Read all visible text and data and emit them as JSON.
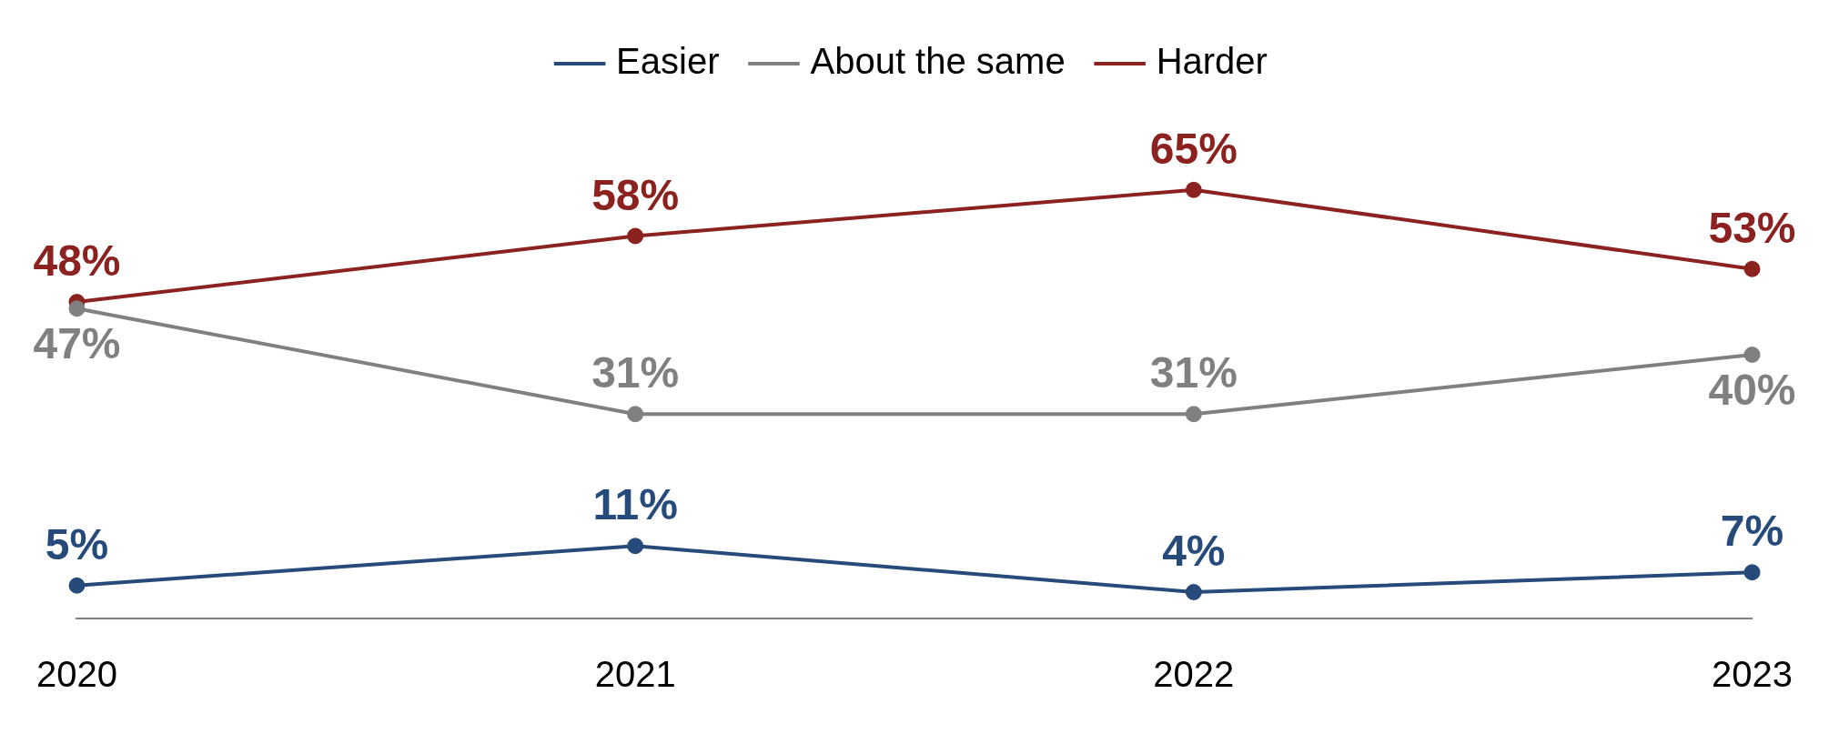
{
  "chart_data": {
    "type": "line",
    "categories": [
      "2020",
      "2021",
      "2022",
      "2023"
    ],
    "series": [
      {
        "name": "Easier",
        "color": "#264b7a",
        "values": [
          5,
          11,
          4,
          7
        ],
        "value_labels": [
          "5%",
          "11%",
          "4%",
          "7%"
        ]
      },
      {
        "name": "About the same",
        "color": "#808080",
        "values": [
          47,
          31,
          31,
          40
        ],
        "value_labels": [
          "47%",
          "31%",
          "31%",
          "40%"
        ]
      },
      {
        "name": "Harder",
        "color": "#8b2220",
        "values": [
          48,
          58,
          65,
          53
        ],
        "value_labels": [
          "48%",
          "58%",
          "65%",
          "53%"
        ]
      }
    ],
    "legend": "top",
    "marker": "circle",
    "line_style": "solid"
  }
}
